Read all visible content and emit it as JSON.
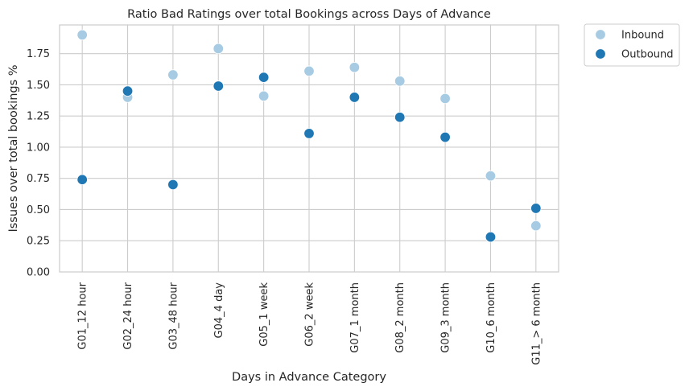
{
  "chart_data": {
    "type": "scatter",
    "title": "Ratio Bad Ratings over total Bookings across Days of Advance",
    "xlabel": "Days in Advance Category",
    "ylabel": "Issues over total bookings %",
    "categories": [
      "G01_12 hour",
      "G02_24 hour",
      "G03_48 hour",
      "G04_4 day",
      "G05_1 week",
      "G06_2 week",
      "G07_1 month",
      "G08_2 month",
      "G09_3 month",
      "G10_6 month",
      "G11_> 6 month"
    ],
    "ylim": [
      0,
      1.98
    ],
    "yticks": [
      0.0,
      0.25,
      0.5,
      0.75,
      1.0,
      1.25,
      1.5,
      1.75
    ],
    "ytick_labels": [
      "0.00",
      "0.25",
      "0.50",
      "0.75",
      "1.00",
      "1.25",
      "1.50",
      "1.75"
    ],
    "grid": true,
    "legend_position": "outside-top-right",
    "series": [
      {
        "name": "Inbound",
        "color": "#a6cbe3",
        "values": [
          1.9,
          1.4,
          1.58,
          1.79,
          1.41,
          1.61,
          1.64,
          1.53,
          1.39,
          0.77,
          0.37
        ]
      },
      {
        "name": "Outbound",
        "color": "#1f77b4",
        "values": [
          0.74,
          1.45,
          0.7,
          1.49,
          1.56,
          1.11,
          1.4,
          1.24,
          1.08,
          0.28,
          0.51
        ]
      }
    ]
  }
}
